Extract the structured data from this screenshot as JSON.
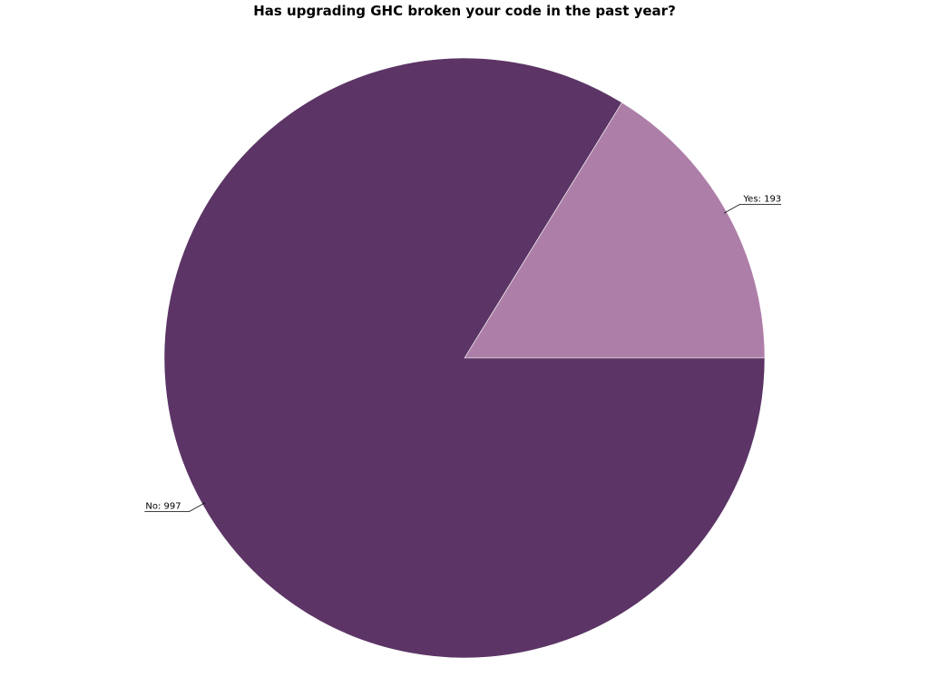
{
  "chart_data": {
    "type": "pie",
    "title": "Has upgrading GHC broken your code in the past year?",
    "slices": [
      {
        "label": "Yes",
        "value": 193,
        "color": "#ad7fa8"
      },
      {
        "label": "No",
        "value": 997,
        "color": "#5c3566"
      }
    ],
    "start_angle_deg": 0,
    "direction": "counterclockwise",
    "label_format": "{label}: {value}"
  }
}
